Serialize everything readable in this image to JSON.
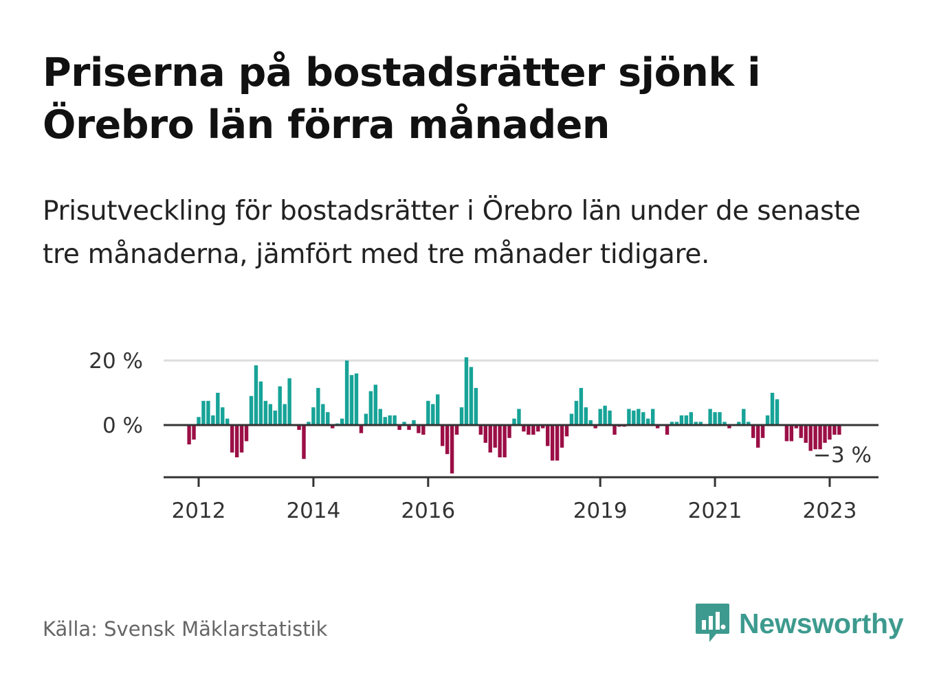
{
  "headline": "Priserna på bostadsrätter sjönk i Örebro län förra månaden",
  "subtitle": "Prisutveckling för bostadsrätter i Örebro län under de senaste tre månaderna, jämfört med tre månader tidigare.",
  "source": "Källa: Svensk Mäklarstatistik",
  "brand": {
    "name": "Newsworthy",
    "icon": "newsworthy-logo-icon",
    "color": "#3d9a8e"
  },
  "colors": {
    "positive": "#17a398",
    "negative": "#9b0f46",
    "grid": "#dddddd",
    "axis": "#333333"
  },
  "chart_data": {
    "type": "bar",
    "title": "",
    "xlabel": "",
    "ylabel": "",
    "ylim": [
      -15,
      22
    ],
    "ytick_values": [
      0,
      20
    ],
    "yticks": [
      "0 %",
      "20 %"
    ],
    "xticks": [
      "2012",
      "2014",
      "2016",
      "2019",
      "2021",
      "2023"
    ],
    "xtick_positions": [
      2012,
      2014,
      2016,
      2019,
      2021,
      2023
    ],
    "start": "2011-11",
    "grid": true,
    "last_label": "−3 %",
    "values": [
      -6,
      -4.5,
      2.5,
      7.5,
      7.5,
      3,
      10,
      5.5,
      2,
      -8.5,
      -10,
      -8.5,
      -5,
      9,
      18.5,
      13.5,
      7.5,
      6.5,
      4.5,
      12,
      6.5,
      14.5,
      0,
      -1.5,
      -10.5,
      1,
      5.5,
      11.5,
      6.5,
      4,
      -1,
      0.5,
      2,
      20,
      15.5,
      16,
      -2.5,
      3.5,
      10.5,
      12.5,
      5,
      2.5,
      3,
      3,
      -1.5,
      1,
      -1.5,
      1.5,
      -2.5,
      -3,
      7.5,
      6.5,
      9.5,
      -6.5,
      -9,
      -15,
      -3,
      5.5,
      21,
      18,
      11.5,
      -3,
      -5.5,
      -8.5,
      -7,
      -10,
      -10,
      -4,
      2,
      5,
      -2,
      -3,
      -3,
      -2,
      -1,
      -6.5,
      -11,
      -11,
      -7,
      -3.5,
      3.5,
      7.5,
      11.5,
      5.5,
      1.5,
      -1,
      5,
      6,
      4.5,
      -3,
      -0.5,
      -0.5,
      5,
      4.5,
      5,
      4,
      2,
      5,
      -1,
      0,
      -3,
      1,
      1,
      3,
      3,
      4,
      1,
      1,
      0,
      5,
      4,
      4,
      1,
      -1,
      0,
      1,
      5,
      1,
      -4,
      -7,
      -4,
      3,
      10,
      8,
      0,
      -5,
      -5,
      -1,
      -4,
      -5.5,
      -8,
      -7.5,
      -7.5,
      -5.5,
      -4.5,
      -3,
      -3
    ]
  }
}
